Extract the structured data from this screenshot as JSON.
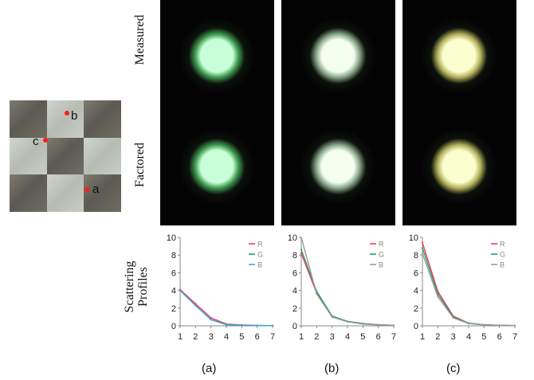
{
  "material": {
    "points": [
      {
        "label": "b",
        "tile_col": 1,
        "tile_row": 0
      },
      {
        "label": "c",
        "tile_col": 0,
        "tile_row": 1
      },
      {
        "label": "a",
        "tile_col": 2,
        "tile_row": 2
      }
    ]
  },
  "row_labels": {
    "measured": "Measured",
    "factored": "Factored",
    "profiles_line1": "Scattering",
    "profiles_line2": "Profiles"
  },
  "panels": [
    {
      "id": "a",
      "tint": "#c9ffd8",
      "edge": "#3f9a50"
    },
    {
      "id": "b",
      "tint": "#f4fff0",
      "edge": "#8aa88a"
    },
    {
      "id": "c",
      "tint": "#fbffd0",
      "edge": "#b3b05a"
    }
  ],
  "subfigure_labels": [
    "(a)",
    "(b)",
    "(c)"
  ],
  "chart_data": [
    {
      "type": "line",
      "x": [
        1,
        2,
        3,
        4,
        5,
        6,
        7
      ],
      "xlim": [
        1,
        7
      ],
      "ylim": [
        0,
        10
      ],
      "xticks": [
        1,
        2,
        3,
        4,
        5,
        6,
        7
      ],
      "yticks": [
        0,
        2,
        4,
        6,
        8,
        10
      ],
      "legend_position": "top-right",
      "series": [
        {
          "name": "R",
          "color": "#ff3366",
          "values": [
            4.1,
            2.5,
            0.9,
            0.2,
            0.1,
            0.05,
            0.02
          ]
        },
        {
          "name": "G",
          "color": "#18a85a",
          "values": [
            4.0,
            2.3,
            0.7,
            0.15,
            0.05,
            0.03,
            0.02
          ]
        },
        {
          "name": "B",
          "color": "#3fa8d8",
          "values": [
            4.0,
            2.3,
            0.7,
            0.12,
            0.05,
            0.03,
            0.02
          ]
        }
      ]
    },
    {
      "type": "line",
      "x": [
        1,
        2,
        3,
        4,
        5,
        6,
        7
      ],
      "xlim": [
        1,
        7
      ],
      "ylim": [
        0,
        10
      ],
      "xticks": [
        1,
        2,
        3,
        4,
        5,
        6,
        7
      ],
      "yticks": [
        0,
        2,
        4,
        6,
        8,
        10
      ],
      "legend_position": "top-right",
      "series": [
        {
          "name": "R",
          "color": "#ff3366",
          "values": [
            8.2,
            3.7,
            1.1,
            0.5,
            0.25,
            0.12,
            0.06
          ]
        },
        {
          "name": "G",
          "color": "#18a85a",
          "values": [
            8.6,
            3.9,
            1.1,
            0.5,
            0.25,
            0.12,
            0.06
          ]
        },
        {
          "name": "B",
          "color": "#9a9a9a",
          "values": [
            10.0,
            3.6,
            1.0,
            0.45,
            0.2,
            0.1,
            0.05
          ]
        }
      ]
    },
    {
      "type": "line",
      "x": [
        1,
        2,
        3,
        4,
        5,
        6,
        7
      ],
      "xlim": [
        1,
        7
      ],
      "ylim": [
        0,
        10
      ],
      "xticks": [
        1,
        2,
        3,
        4,
        5,
        6,
        7
      ],
      "yticks": [
        0,
        2,
        4,
        6,
        8,
        10
      ],
      "legend_position": "top-right",
      "series": [
        {
          "name": "R",
          "color": "#ff3366",
          "values": [
            9.4,
            3.9,
            1.1,
            0.3,
            0.12,
            0.06,
            0.03
          ]
        },
        {
          "name": "G",
          "color": "#18a85a",
          "values": [
            8.8,
            3.6,
            1.0,
            0.3,
            0.12,
            0.06,
            0.03
          ]
        },
        {
          "name": "B",
          "color": "#9a9a9a",
          "values": [
            8.2,
            3.3,
            0.9,
            0.25,
            0.1,
            0.05,
            0.03
          ]
        }
      ]
    }
  ]
}
